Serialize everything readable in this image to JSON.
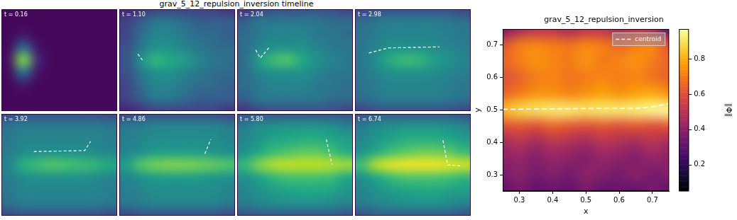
{
  "chart_data": [
    {
      "type": "heatmap_panels",
      "title": "grav_5_12_repulsion_inversion timeline",
      "xlim": [
        0,
        1
      ],
      "ylim": [
        0,
        1
      ],
      "tick_labels": false,
      "color": "#ffffff",
      "line_style": "dashed",
      "x": [
        0.0625,
        0.1875,
        0.3125,
        0.4375,
        0.5625,
        0.6875,
        0.8125,
        0.9375
      ],
      "y": [
        0,
        0.125,
        0.25,
        0.375,
        0.5,
        0.625,
        0.75,
        0.875,
        1
      ],
      "panels": [
        {
          "title": "t = 0.16",
          "cells": [
            [
              0.02,
              0.02,
              0.02,
              0.02,
              0.02,
              0.02,
              0.02,
              0.02
            ],
            [
              0.02,
              0.02,
              0.02,
              0.02,
              0.02,
              0.02,
              0.02,
              0.02
            ],
            [
              0.02,
              0.06,
              0.02,
              0.02,
              0.02,
              0.02,
              0.02,
              0.02
            ],
            [
              0.03,
              0.35,
              0.06,
              0.02,
              0.02,
              0.02,
              0.02,
              0.02
            ],
            [
              0.05,
              0.8,
              0.12,
              0.02,
              0.02,
              0.02,
              0.02,
              0.02
            ],
            [
              0.03,
              0.35,
              0.06,
              0.02,
              0.02,
              0.02,
              0.02,
              0.02
            ],
            [
              0.02,
              0.06,
              0.02,
              0.02,
              0.02,
              0.02,
              0.02,
              0.02
            ],
            [
              0.02,
              0.02,
              0.02,
              0.02,
              0.02,
              0.02,
              0.02,
              0.02
            ],
            [
              0.02,
              0.02,
              0.02,
              0.02,
              0.02,
              0.02,
              0.02,
              0.02
            ]
          ],
          "centroid": {
            "x": [],
            "y": []
          }
        },
        {
          "title": "t = 1.10",
          "cells": [
            [
              0.1,
              0.15,
              0.2,
              0.2,
              0.2,
              0.2,
              0.2,
              0.15
            ],
            [
              0.2,
              0.3,
              0.4,
              0.4,
              0.35,
              0.3,
              0.3,
              0.3
            ],
            [
              0.2,
              0.35,
              0.45,
              0.45,
              0.4,
              0.35,
              0.35,
              0.3
            ],
            [
              0.25,
              0.4,
              0.5,
              0.5,
              0.45,
              0.4,
              0.35,
              0.35
            ],
            [
              0.25,
              0.5,
              0.65,
              0.6,
              0.55,
              0.45,
              0.4,
              0.35
            ],
            [
              0.25,
              0.4,
              0.5,
              0.5,
              0.45,
              0.4,
              0.35,
              0.35
            ],
            [
              0.2,
              0.35,
              0.45,
              0.45,
              0.4,
              0.35,
              0.35,
              0.3
            ],
            [
              0.2,
              0.3,
              0.4,
              0.4,
              0.35,
              0.3,
              0.3,
              0.3
            ],
            [
              0.1,
              0.15,
              0.2,
              0.2,
              0.2,
              0.2,
              0.2,
              0.15
            ]
          ],
          "centroid": {
            "x": [
              0.16,
              0.2
            ],
            "y": [
              0.56,
              0.5
            ]
          }
        },
        {
          "title": "t = 2.04",
          "cells": [
            [
              0.15,
              0.2,
              0.25,
              0.25,
              0.25,
              0.25,
              0.25,
              0.2
            ],
            [
              0.3,
              0.4,
              0.4,
              0.4,
              0.4,
              0.4,
              0.35,
              0.35
            ],
            [
              0.35,
              0.4,
              0.45,
              0.45,
              0.45,
              0.4,
              0.4,
              0.35
            ],
            [
              0.35,
              0.45,
              0.5,
              0.5,
              0.5,
              0.45,
              0.4,
              0.4
            ],
            [
              0.35,
              0.55,
              0.68,
              0.72,
              0.6,
              0.5,
              0.45,
              0.4
            ],
            [
              0.35,
              0.45,
              0.5,
              0.5,
              0.5,
              0.45,
              0.4,
              0.4
            ],
            [
              0.35,
              0.4,
              0.45,
              0.45,
              0.45,
              0.4,
              0.4,
              0.35
            ],
            [
              0.3,
              0.4,
              0.4,
              0.4,
              0.4,
              0.4,
              0.35,
              0.35
            ],
            [
              0.15,
              0.2,
              0.25,
              0.25,
              0.25,
              0.25,
              0.25,
              0.2
            ]
          ],
          "centroid": {
            "x": [
              0.16,
              0.2,
              0.28
            ],
            "y": [
              0.6,
              0.52,
              0.63
            ]
          }
        },
        {
          "title": "t = 2.98",
          "cells": [
            [
              0.2,
              0.25,
              0.25,
              0.25,
              0.25,
              0.25,
              0.25,
              0.2
            ],
            [
              0.35,
              0.4,
              0.42,
              0.42,
              0.42,
              0.42,
              0.4,
              0.38
            ],
            [
              0.38,
              0.42,
              0.45,
              0.45,
              0.45,
              0.45,
              0.42,
              0.4
            ],
            [
              0.4,
              0.45,
              0.5,
              0.5,
              0.5,
              0.48,
              0.45,
              0.42
            ],
            [
              0.4,
              0.5,
              0.62,
              0.68,
              0.65,
              0.55,
              0.5,
              0.45
            ],
            [
              0.4,
              0.45,
              0.5,
              0.5,
              0.5,
              0.48,
              0.45,
              0.42
            ],
            [
              0.38,
              0.42,
              0.45,
              0.45,
              0.45,
              0.45,
              0.42,
              0.4
            ],
            [
              0.35,
              0.4,
              0.42,
              0.42,
              0.42,
              0.42,
              0.4,
              0.38
            ],
            [
              0.2,
              0.25,
              0.25,
              0.25,
              0.25,
              0.25,
              0.25,
              0.2
            ]
          ],
          "centroid": {
            "x": [
              0.12,
              0.29,
              0.73
            ],
            "y": [
              0.57,
              0.62,
              0.63
            ]
          }
        },
        {
          "title": "t = 3.92",
          "cells": [
            [
              0.22,
              0.25,
              0.25,
              0.25,
              0.25,
              0.25,
              0.25,
              0.22
            ],
            [
              0.38,
              0.42,
              0.42,
              0.42,
              0.42,
              0.42,
              0.42,
              0.4
            ],
            [
              0.4,
              0.45,
              0.45,
              0.45,
              0.45,
              0.45,
              0.45,
              0.42
            ],
            [
              0.42,
              0.48,
              0.5,
              0.5,
              0.5,
              0.5,
              0.48,
              0.45
            ],
            [
              0.45,
              0.62,
              0.68,
              0.72,
              0.7,
              0.68,
              0.65,
              0.6
            ],
            [
              0.42,
              0.48,
              0.5,
              0.5,
              0.5,
              0.5,
              0.48,
              0.45
            ],
            [
              0.4,
              0.45,
              0.45,
              0.45,
              0.45,
              0.45,
              0.45,
              0.42
            ],
            [
              0.38,
              0.42,
              0.42,
              0.42,
              0.42,
              0.42,
              0.42,
              0.4
            ],
            [
              0.22,
              0.25,
              0.25,
              0.25,
              0.25,
              0.25,
              0.25,
              0.22
            ]
          ],
          "centroid": {
            "x": [
              0.28,
              0.72,
              0.77
            ],
            "y": [
              0.63,
              0.64,
              0.73
            ]
          }
        },
        {
          "title": "t = 4.86",
          "cells": [
            [
              0.22,
              0.25,
              0.25,
              0.25,
              0.25,
              0.25,
              0.25,
              0.22
            ],
            [
              0.4,
              0.42,
              0.45,
              0.45,
              0.45,
              0.45,
              0.45,
              0.42
            ],
            [
              0.42,
              0.45,
              0.48,
              0.48,
              0.48,
              0.48,
              0.48,
              0.45
            ],
            [
              0.45,
              0.5,
              0.55,
              0.55,
              0.55,
              0.55,
              0.52,
              0.5
            ],
            [
              0.55,
              0.72,
              0.78,
              0.8,
              0.8,
              0.78,
              0.75,
              0.72
            ],
            [
              0.45,
              0.5,
              0.55,
              0.55,
              0.55,
              0.55,
              0.52,
              0.5
            ],
            [
              0.42,
              0.45,
              0.48,
              0.48,
              0.48,
              0.48,
              0.48,
              0.45
            ],
            [
              0.4,
              0.42,
              0.45,
              0.45,
              0.45,
              0.45,
              0.45,
              0.42
            ],
            [
              0.22,
              0.25,
              0.25,
              0.25,
              0.25,
              0.25,
              0.25,
              0.22
            ]
          ],
          "centroid": {
            "x": [
              0.74,
              0.79
            ],
            "y": [
              0.61,
              0.75
            ]
          }
        },
        {
          "title": "t = 5.80",
          "cells": [
            [
              0.25,
              0.28,
              0.28,
              0.28,
              0.28,
              0.28,
              0.28,
              0.25
            ],
            [
              0.42,
              0.45,
              0.48,
              0.5,
              0.5,
              0.5,
              0.48,
              0.45
            ],
            [
              0.45,
              0.5,
              0.55,
              0.58,
              0.6,
              0.6,
              0.58,
              0.52
            ],
            [
              0.5,
              0.58,
              0.65,
              0.7,
              0.7,
              0.7,
              0.68,
              0.6
            ],
            [
              0.65,
              0.8,
              0.88,
              0.9,
              0.9,
              0.9,
              0.88,
              0.85
            ],
            [
              0.5,
              0.6,
              0.68,
              0.72,
              0.75,
              0.75,
              0.7,
              0.62
            ],
            [
              0.45,
              0.52,
              0.58,
              0.6,
              0.62,
              0.62,
              0.6,
              0.55
            ],
            [
              0.42,
              0.48,
              0.5,
              0.52,
              0.52,
              0.52,
              0.5,
              0.45
            ],
            [
              0.25,
              0.28,
              0.28,
              0.28,
              0.28,
              0.28,
              0.28,
              0.25
            ]
          ],
          "centroid": {
            "x": [
              0.77,
              0.82
            ],
            "y": [
              0.75,
              0.5
            ]
          }
        },
        {
          "title": "t = 6.74",
          "cells": [
            [
              0.25,
              0.3,
              0.3,
              0.3,
              0.3,
              0.3,
              0.3,
              0.25
            ],
            [
              0.42,
              0.45,
              0.48,
              0.5,
              0.5,
              0.5,
              0.48,
              0.45
            ],
            [
              0.45,
              0.5,
              0.55,
              0.58,
              0.6,
              0.6,
              0.58,
              0.55
            ],
            [
              0.5,
              0.6,
              0.68,
              0.72,
              0.72,
              0.72,
              0.7,
              0.65
            ],
            [
              0.7,
              0.88,
              0.95,
              0.97,
              0.97,
              0.97,
              0.95,
              0.92
            ],
            [
              0.52,
              0.62,
              0.7,
              0.75,
              0.78,
              0.78,
              0.75,
              0.68
            ],
            [
              0.45,
              0.52,
              0.58,
              0.62,
              0.62,
              0.62,
              0.6,
              0.55
            ],
            [
              0.42,
              0.48,
              0.5,
              0.52,
              0.52,
              0.52,
              0.5,
              0.45
            ],
            [
              0.25,
              0.3,
              0.3,
              0.3,
              0.3,
              0.3,
              0.3,
              0.25
            ]
          ],
          "centroid": {
            "x": [
              0.76,
              0.8,
              0.92
            ],
            "y": [
              0.74,
              0.5,
              0.49
            ]
          }
        }
      ]
    },
    {
      "type": "heatmap",
      "title": "grav_5_12_repulsion_inversion",
      "xlabel": "x",
      "ylabel": "y",
      "xlim": [
        0.25,
        0.75
      ],
      "ylim": [
        0.25,
        0.75
      ],
      "xticks": [
        0.3,
        0.4,
        0.5,
        0.6,
        0.7
      ],
      "yticks": [
        0.3,
        0.4,
        0.5,
        0.6,
        0.7
      ],
      "grid": false,
      "legend": "upper right",
      "x": [
        0.25,
        0.3,
        0.35,
        0.4,
        0.45,
        0.5,
        0.55,
        0.6,
        0.65,
        0.7,
        0.75
      ],
      "y": [
        0.25,
        0.3,
        0.35,
        0.4,
        0.45,
        0.5,
        0.55,
        0.6,
        0.65,
        0.7,
        0.75
      ],
      "cells": [
        [
          0.3,
          0.35,
          0.3,
          0.32,
          0.3,
          0.35,
          0.3,
          0.32,
          0.3,
          0.35,
          0.3
        ],
        [
          0.35,
          0.4,
          0.35,
          0.38,
          0.35,
          0.4,
          0.38,
          0.35,
          0.4,
          0.35,
          0.38
        ],
        [
          0.4,
          0.42,
          0.38,
          0.42,
          0.4,
          0.38,
          0.42,
          0.4,
          0.38,
          0.42,
          0.4
        ],
        [
          0.45,
          0.5,
          0.45,
          0.5,
          0.48,
          0.45,
          0.5,
          0.48,
          0.45,
          0.5,
          0.45
        ],
        [
          0.6,
          0.62,
          0.6,
          0.65,
          0.62,
          0.6,
          0.62,
          0.6,
          0.62,
          0.6,
          0.62
        ],
        [
          0.82,
          0.88,
          0.9,
          0.92,
          0.92,
          0.9,
          0.92,
          0.92,
          0.93,
          0.95,
          0.96
        ],
        [
          0.65,
          0.7,
          0.75,
          0.75,
          0.72,
          0.75,
          0.78,
          0.75,
          0.78,
          0.8,
          0.75
        ],
        [
          0.6,
          0.65,
          0.7,
          0.72,
          0.68,
          0.7,
          0.72,
          0.7,
          0.72,
          0.68,
          0.65
        ],
        [
          0.65,
          0.7,
          0.75,
          0.72,
          0.7,
          0.75,
          0.7,
          0.72,
          0.75,
          0.7,
          0.65
        ],
        [
          0.6,
          0.7,
          0.72,
          0.7,
          0.68,
          0.72,
          0.7,
          0.65,
          0.7,
          0.72,
          0.6
        ],
        [
          0.35,
          0.45,
          0.5,
          0.5,
          0.45,
          0.5,
          0.5,
          0.45,
          0.5,
          0.45,
          0.3
        ]
      ],
      "colorbar": {
        "label": "‖Φ‖",
        "range": [
          0.05,
          0.97
        ],
        "ticks": [
          0.2,
          0.4,
          0.6,
          0.8
        ]
      },
      "series": [
        {
          "name": "centroid",
          "color": "#ffffff",
          "line_style": "dashed",
          "x": [
            0.25,
            0.35,
            0.45,
            0.55,
            0.65,
            0.7,
            0.75
          ],
          "y": [
            0.502,
            0.503,
            0.504,
            0.505,
            0.505,
            0.51,
            0.52
          ]
        }
      ]
    }
  ]
}
